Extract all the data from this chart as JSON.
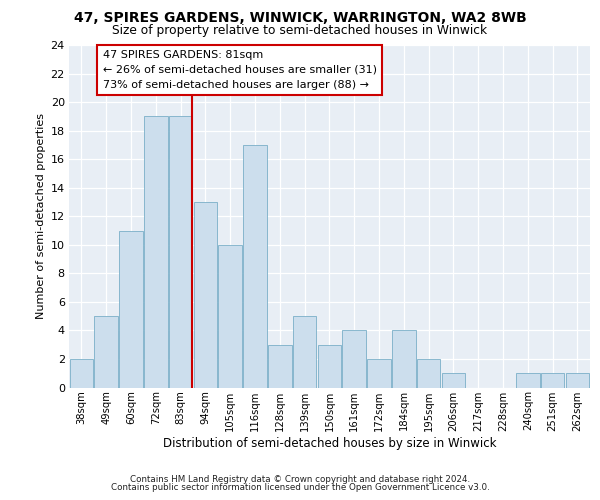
{
  "title1": "47, SPIRES GARDENS, WINWICK, WARRINGTON, WA2 8WB",
  "title2": "Size of property relative to semi-detached houses in Winwick",
  "xlabel": "Distribution of semi-detached houses by size in Winwick",
  "ylabel": "Number of semi-detached properties",
  "categories": [
    "38sqm",
    "49sqm",
    "60sqm",
    "72sqm",
    "83sqm",
    "94sqm",
    "105sqm",
    "116sqm",
    "128sqm",
    "139sqm",
    "150sqm",
    "161sqm",
    "172sqm",
    "184sqm",
    "195sqm",
    "206sqm",
    "217sqm",
    "228sqm",
    "240sqm",
    "251sqm",
    "262sqm"
  ],
  "values": [
    2,
    5,
    11,
    19,
    19,
    13,
    10,
    17,
    3,
    5,
    3,
    4,
    2,
    4,
    2,
    1,
    0,
    0,
    1,
    1,
    1
  ],
  "bar_color": "#ccdeed",
  "bar_edge_color": "#7aafc8",
  "highlight_line_index": 4,
  "annotation_title": "47 SPIRES GARDENS: 81sqm",
  "annotation_line1": "← 26% of semi-detached houses are smaller (31)",
  "annotation_line2": "73% of semi-detached houses are larger (88) →",
  "annotation_box_edgecolor": "#cc0000",
  "vline_color": "#cc0000",
  "ylim": [
    0,
    24
  ],
  "yticks": [
    0,
    2,
    4,
    6,
    8,
    10,
    12,
    14,
    16,
    18,
    20,
    22,
    24
  ],
  "bg_color": "#e8eef5",
  "grid_color": "#ffffff",
  "footer1": "Contains HM Land Registry data © Crown copyright and database right 2024.",
  "footer2": "Contains public sector information licensed under the Open Government Licence v3.0."
}
